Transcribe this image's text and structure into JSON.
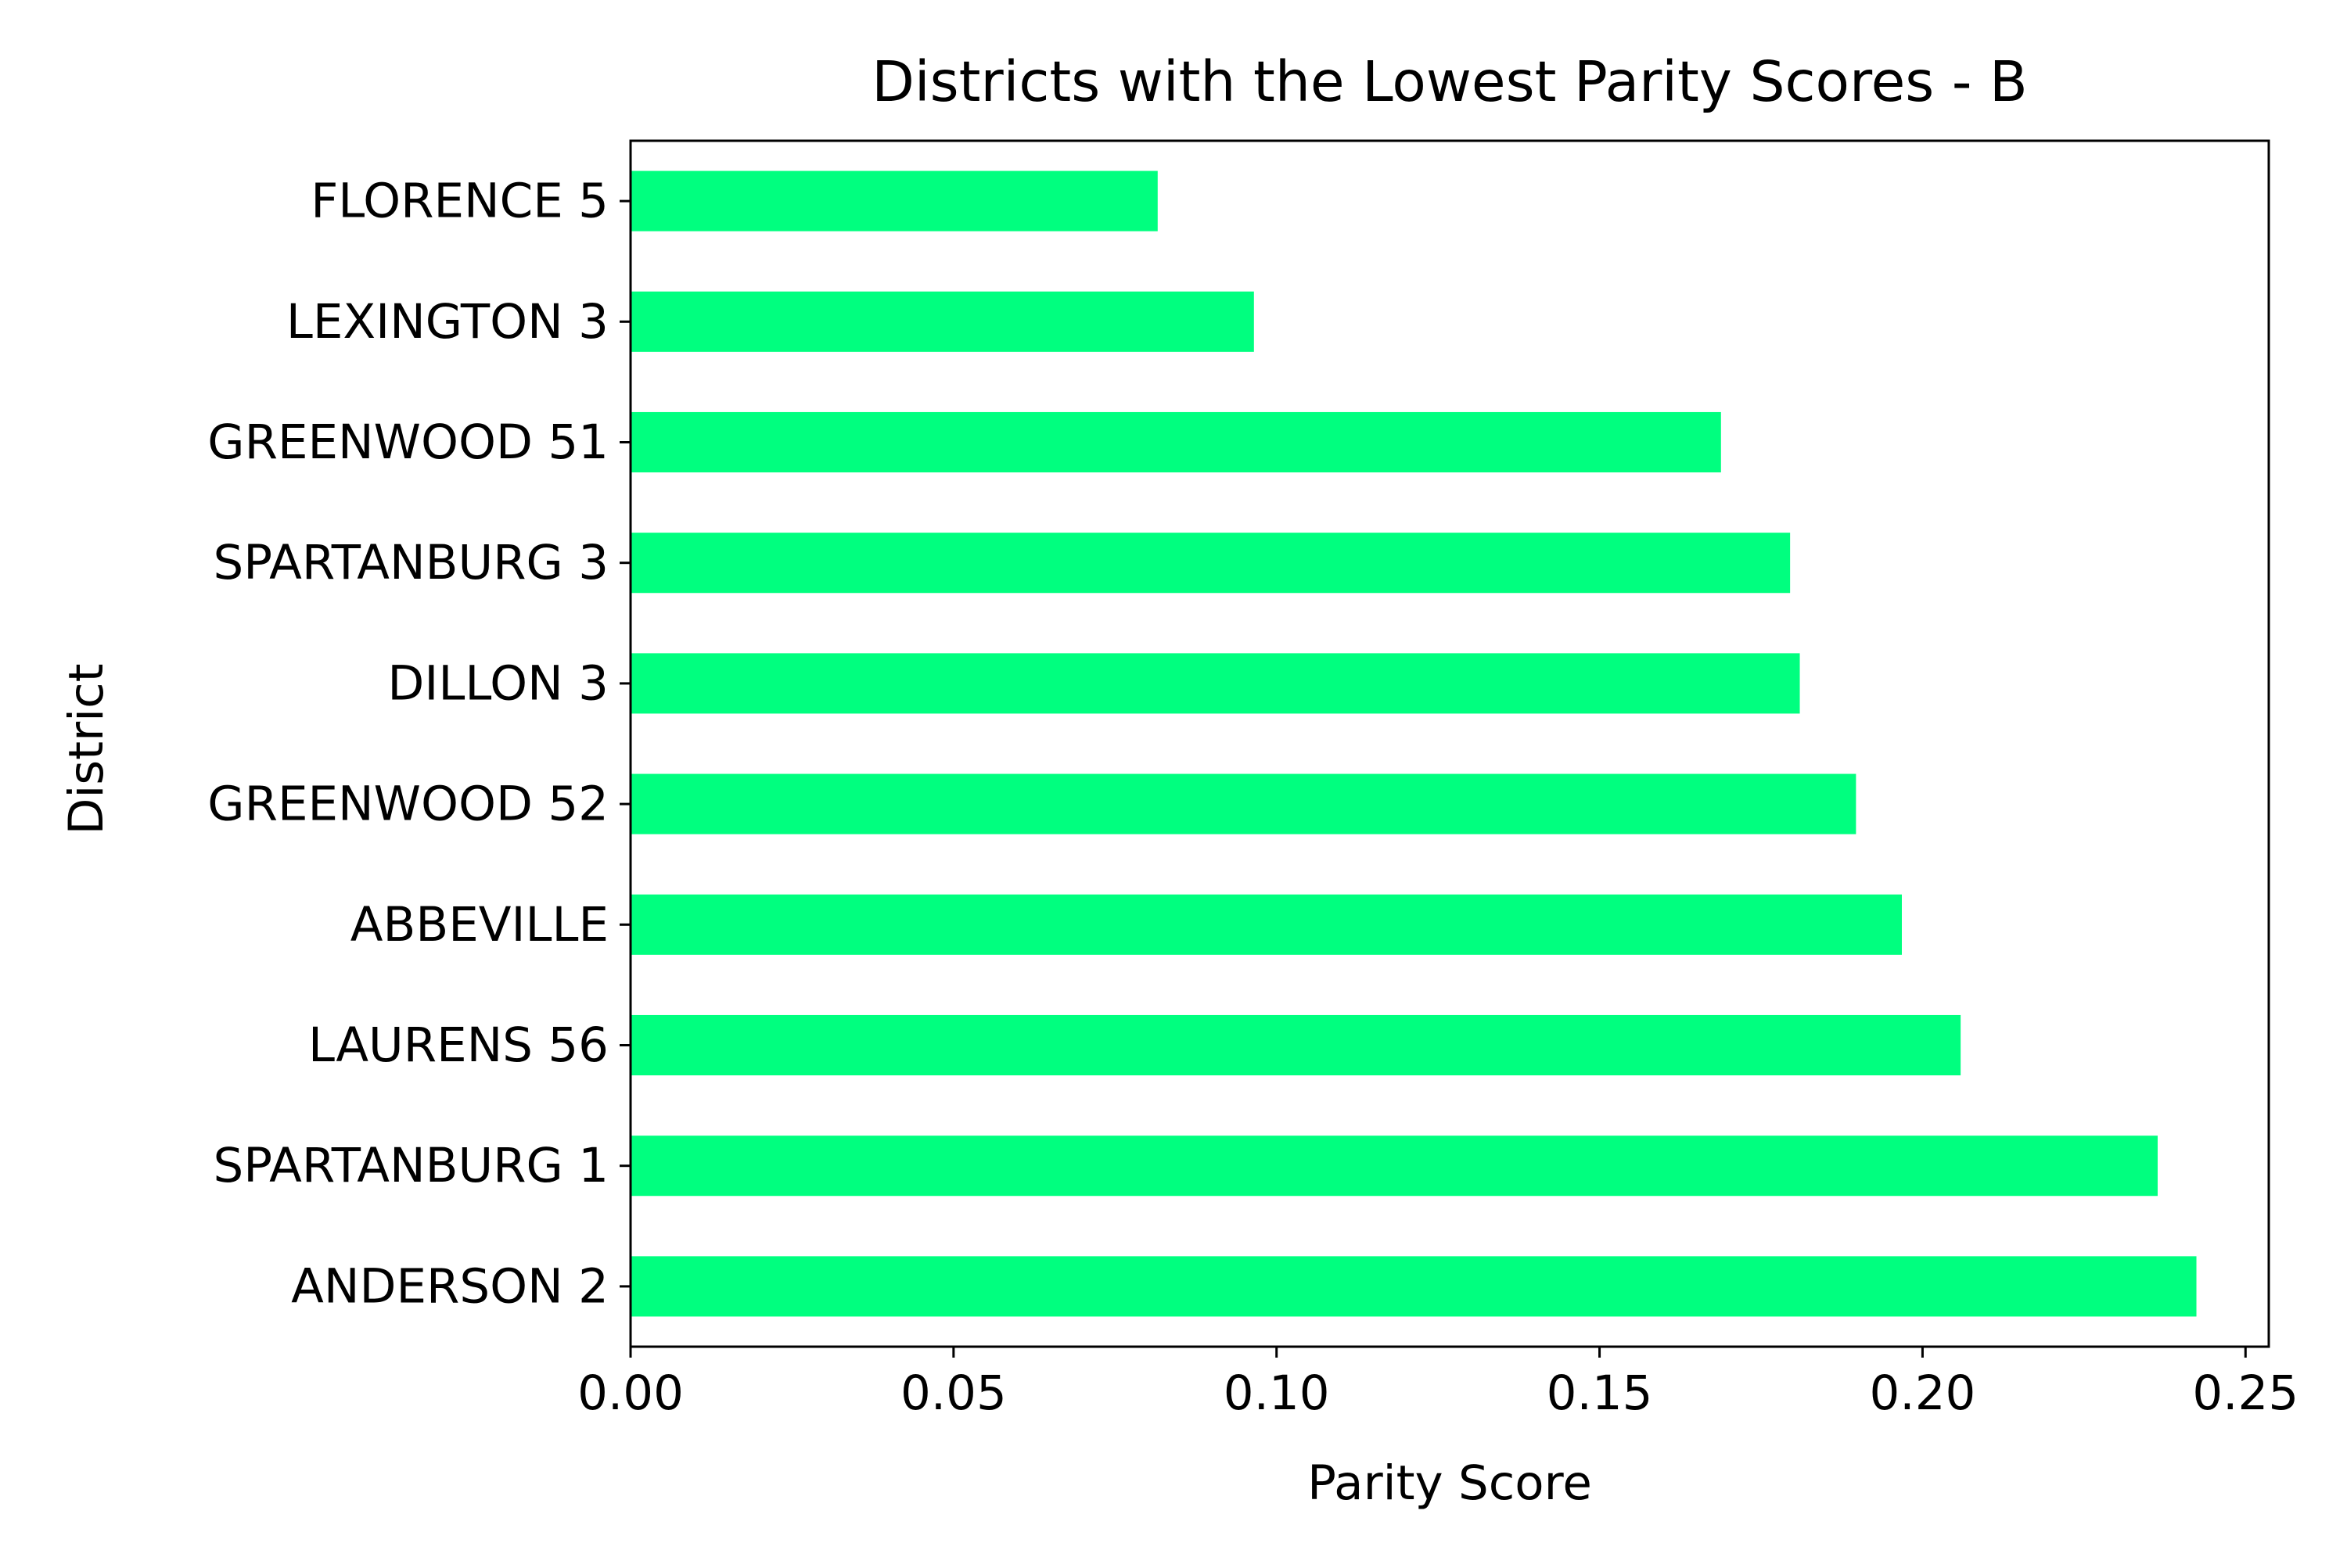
{
  "chart_data": {
    "type": "bar",
    "orientation": "horizontal",
    "title": "Districts with the Lowest Parity Scores - B",
    "xlabel": "Parity Score",
    "ylabel": "District",
    "categories": [
      "FLORENCE 5",
      "LEXINGTON 3",
      "GREENWOOD 51",
      "SPARTANBURG 3",
      "DILLON 3",
      "GREENWOOD 52",
      "ABBEVILLE",
      "LAURENS 56",
      "SPARTANBURG 1",
      "ANDERSON 2"
    ],
    "values": [
      0.0816,
      0.0965,
      0.1688,
      0.1795,
      0.181,
      0.1897,
      0.1968,
      0.2059,
      0.2364,
      0.2424
    ],
    "xlim": [
      0,
      0.2536
    ],
    "xticks": [
      0.0,
      0.05,
      0.1,
      0.15,
      0.2,
      0.25
    ],
    "xtick_labels": [
      "0.00",
      "0.05",
      "0.10",
      "0.15",
      "0.20",
      "0.25"
    ],
    "bar_color": "#00ff7f",
    "grid": false,
    "legend": "none"
  }
}
